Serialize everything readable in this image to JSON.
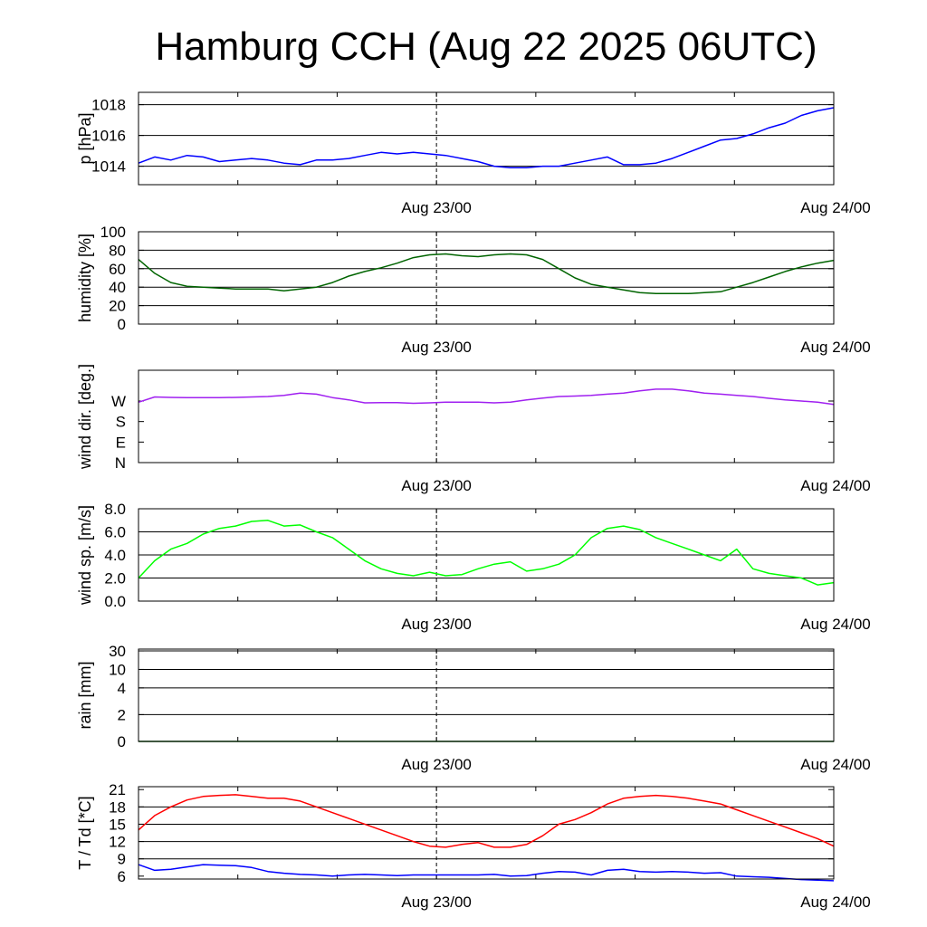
{
  "title": "Hamburg CCH (Aug 22 2025 06UTC)",
  "chart_data": [
    {
      "type": "line",
      "ylabel": "p [hPa]",
      "x_start": "Aug 22 06UTC",
      "x_end": "Aug 24 00UTC",
      "x_hours_span": 42,
      "x_tick_labels": [
        "Aug 23/00",
        "Aug 24/00"
      ],
      "ylim": [
        1012.8,
        1018.8
      ],
      "yticks": [
        {
          "v": 1014,
          "label": "1014"
        },
        {
          "v": 1016,
          "label": "1016"
        },
        {
          "v": 1018,
          "label": "1018"
        }
      ],
      "grid_lines": [
        1014,
        1016,
        1018
      ],
      "series": [
        {
          "color": "#0000ff",
          "values": [
            1014.2,
            1014.6,
            1014.4,
            1014.7,
            1014.6,
            1014.3,
            1014.4,
            1014.5,
            1014.4,
            1014.2,
            1014.1,
            1014.4,
            1014.4,
            1014.5,
            1014.7,
            1014.9,
            1014.8,
            1014.9,
            1014.8,
            1014.7,
            1014.5,
            1014.3,
            1014.0,
            1013.9,
            1013.9,
            1014.0,
            1014.0,
            1014.2,
            1014.4,
            1014.6,
            1014.1,
            1014.1,
            1014.2,
            1014.5,
            1014.9,
            1015.3,
            1015.7,
            1015.8,
            1016.1,
            1016.5,
            1016.8,
            1017.3,
            1017.6,
            1017.8
          ]
        }
      ]
    },
    {
      "type": "line",
      "ylabel": "humidity [%]",
      "ylim": [
        0,
        100
      ],
      "yticks": [
        {
          "v": 0,
          "label": "0"
        },
        {
          "v": 20,
          "label": "20"
        },
        {
          "v": 40,
          "label": "40"
        },
        {
          "v": 60,
          "label": "60"
        },
        {
          "v": 80,
          "label": "80"
        },
        {
          "v": 100,
          "label": "100"
        }
      ],
      "grid_lines": [
        20,
        40,
        60,
        80
      ],
      "series": [
        {
          "color": "#006400",
          "values": [
            70,
            55,
            45,
            41,
            40,
            39,
            38,
            38,
            38,
            36,
            38,
            40,
            45,
            52,
            57,
            61,
            66,
            72,
            75,
            76,
            74,
            73,
            75,
            76,
            75,
            70,
            60,
            50,
            43,
            40,
            37,
            34,
            33,
            33,
            33,
            34,
            35,
            40,
            45,
            51,
            57,
            62,
            66,
            69
          ]
        }
      ]
    },
    {
      "type": "line",
      "ylabel": "wind dir. [deg.]",
      "ylim": [
        0,
        405
      ],
      "yticks": [
        {
          "v": 0,
          "label": "N"
        },
        {
          "v": 90,
          "label": "E"
        },
        {
          "v": 180,
          "label": "S"
        },
        {
          "v": 270,
          "label": "W"
        }
      ],
      "grid_lines": [],
      "series": [
        {
          "color": "#a020f0",
          "values": [
            265,
            288,
            286,
            285,
            285,
            285,
            286,
            288,
            290,
            295,
            305,
            300,
            285,
            275,
            262,
            263,
            263,
            260,
            262,
            265,
            265,
            265,
            262,
            265,
            275,
            283,
            290,
            292,
            295,
            300,
            305,
            315,
            322,
            322,
            315,
            305,
            300,
            295,
            290,
            282,
            275,
            270,
            265,
            255
          ]
        }
      ]
    },
    {
      "type": "line",
      "ylabel": "wind sp. [m/s]",
      "ylim": [
        0,
        8
      ],
      "yticks": [
        {
          "v": 0,
          "label": "0.0"
        },
        {
          "v": 2,
          "label": "2.0"
        },
        {
          "v": 4,
          "label": "4.0"
        },
        {
          "v": 6,
          "label": "6.0"
        },
        {
          "v": 8,
          "label": "8.0"
        }
      ],
      "grid_lines": [
        2,
        4,
        6
      ],
      "series": [
        {
          "color": "#00ff00",
          "values": [
            2.0,
            3.5,
            4.5,
            5.0,
            5.8,
            6.3,
            6.5,
            6.9,
            7.0,
            6.5,
            6.6,
            6.0,
            5.5,
            4.5,
            3.5,
            2.8,
            2.4,
            2.2,
            2.5,
            2.2,
            2.3,
            2.8,
            3.2,
            3.4,
            2.6,
            2.8,
            3.2,
            4.0,
            5.5,
            6.3,
            6.5,
            6.2,
            5.5,
            5.0,
            4.5,
            4.0,
            3.5,
            4.5,
            2.8,
            2.4,
            2.2,
            2.0,
            1.4,
            1.6
          ]
        }
      ]
    },
    {
      "type": "line",
      "ylabel": "rain [mm]",
      "ylim": [
        0,
        30
      ],
      "yticks": [
        {
          "v": 0,
          "label": "0"
        },
        {
          "v": 2,
          "label": "2"
        },
        {
          "v": 4,
          "label": "4"
        },
        {
          "v": 10,
          "label": "10"
        },
        {
          "v": 30,
          "label": "30"
        }
      ],
      "grid_lines": [
        2,
        4,
        10,
        30
      ],
      "series": [
        {
          "color": "#006400",
          "values": [
            0,
            0,
            0,
            0,
            0,
            0,
            0,
            0,
            0,
            0,
            0,
            0,
            0,
            0,
            0,
            0,
            0,
            0,
            0,
            0,
            0,
            0,
            0,
            0,
            0,
            0,
            0,
            0,
            0,
            0,
            0,
            0,
            0,
            0,
            0,
            0,
            0,
            0,
            0,
            0,
            0,
            0,
            0,
            0
          ]
        }
      ]
    },
    {
      "type": "line",
      "ylabel": "T / Td [*C]",
      "ylim": [
        5.5,
        21.5
      ],
      "yticks": [
        {
          "v": 6,
          "label": "6"
        },
        {
          "v": 9,
          "label": "9"
        },
        {
          "v": 12,
          "label": "12"
        },
        {
          "v": 15,
          "label": "15"
        },
        {
          "v": 18,
          "label": "18"
        },
        {
          "v": 21,
          "label": "21"
        }
      ],
      "grid_lines": [
        9,
        12,
        15,
        18
      ],
      "series": [
        {
          "color": "#ff0000",
          "values": [
            14.0,
            16.5,
            18.0,
            19.2,
            19.8,
            20.0,
            20.1,
            19.8,
            19.5,
            19.5,
            19.0,
            18.0,
            17.0,
            16.0,
            15.0,
            14.0,
            13.0,
            12.0,
            11.2,
            11.0,
            11.5,
            11.8,
            11.0,
            11.0,
            11.5,
            13.0,
            15.0,
            15.8,
            17.0,
            18.5,
            19.5,
            19.8,
            20.0,
            19.8,
            19.5,
            19.0,
            18.5,
            17.5,
            16.5,
            15.5,
            14.5,
            13.5,
            12.5,
            11.2
          ]
        },
        {
          "color": "#0000ff",
          "values": [
            8.0,
            7.0,
            7.2,
            7.6,
            8.0,
            7.9,
            7.8,
            7.5,
            6.8,
            6.5,
            6.3,
            6.2,
            6.0,
            6.2,
            6.3,
            6.2,
            6.1,
            6.2,
            6.2,
            6.2,
            6.2,
            6.2,
            6.3,
            6.0,
            6.1,
            6.5,
            6.8,
            6.7,
            6.2,
            7.0,
            7.2,
            6.8,
            6.7,
            6.8,
            6.7,
            6.5,
            6.6,
            6.0,
            5.9,
            5.8,
            5.6,
            5.4,
            5.3,
            5.2
          ]
        }
      ]
    }
  ]
}
